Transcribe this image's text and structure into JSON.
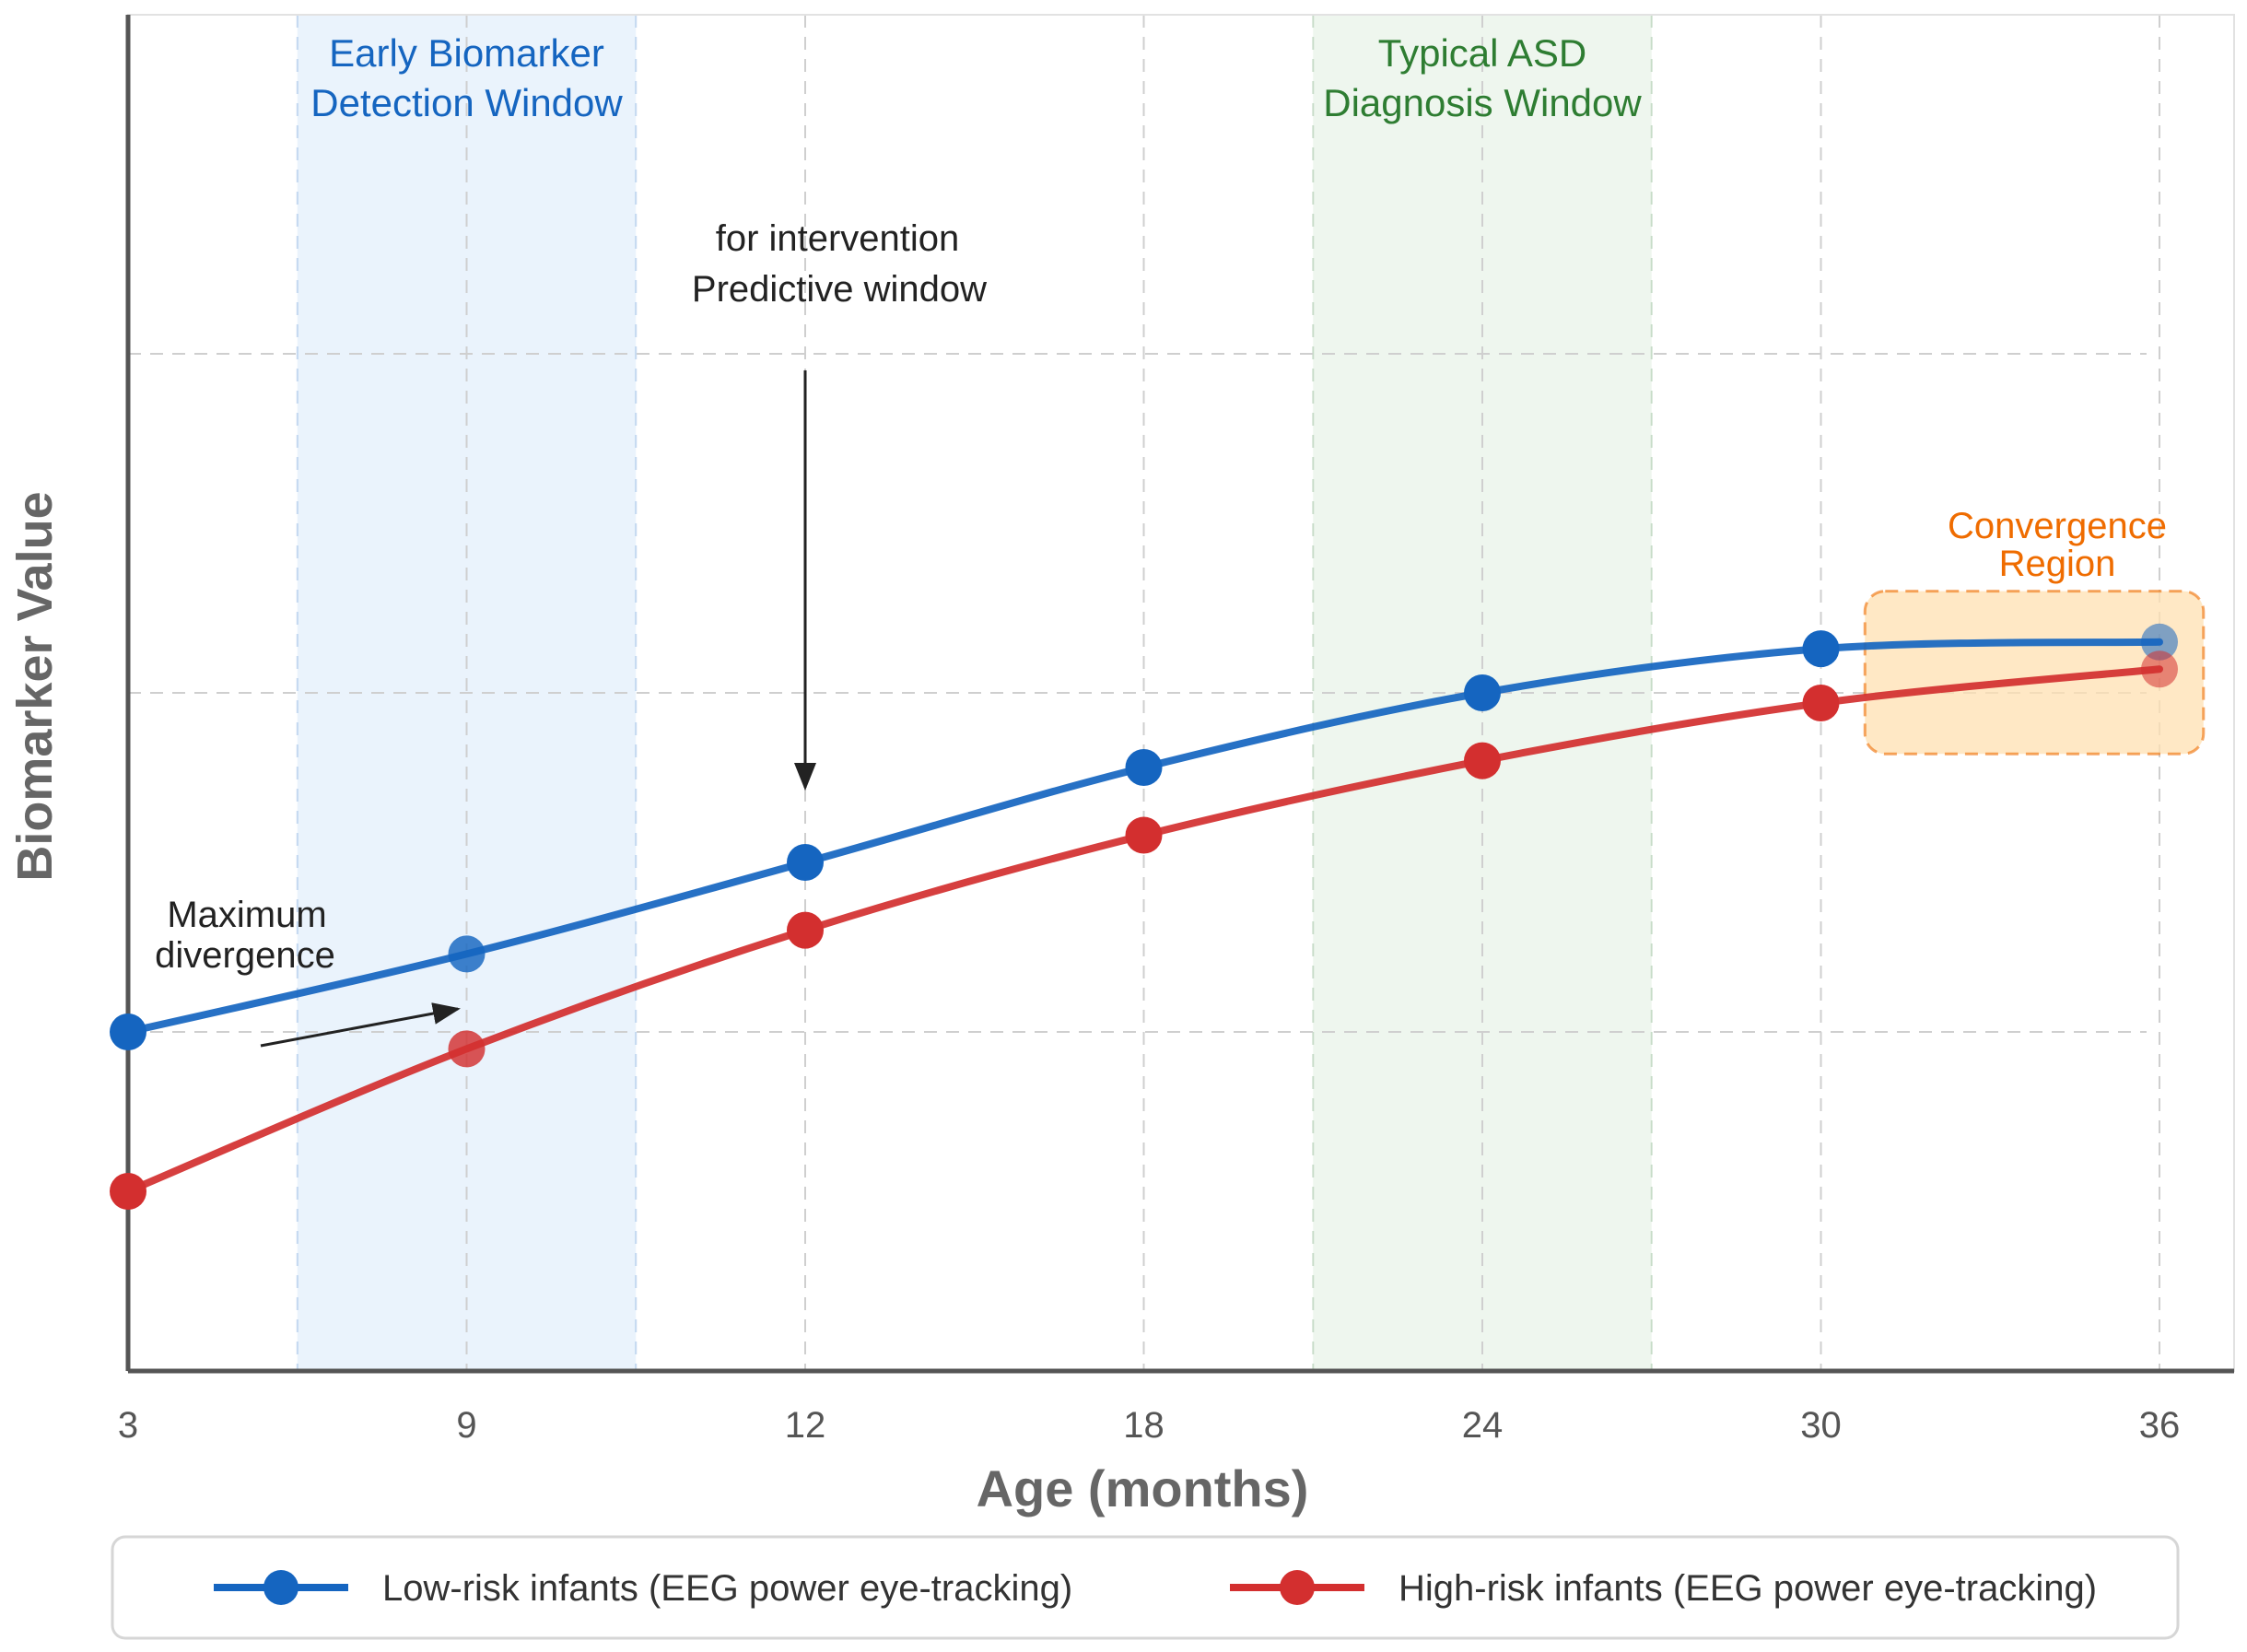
{
  "chart_data": {
    "type": "line",
    "title": "",
    "xlabel": "Age (months)",
    "ylabel": "Biomarker Value",
    "x_ticks": [
      "3",
      "9",
      "12",
      "18",
      "24",
      "30",
      "36"
    ],
    "ylim": [
      0,
      4
    ],
    "grid": true,
    "series": [
      {
        "name": "Low-risk infants (EEG power eye-tracking)",
        "color": "#1565c0",
        "values": [
          1.0,
          1.23,
          1.5,
          1.78,
          2.0,
          2.13,
          2.15
        ]
      },
      {
        "name": "High-risk infants (EEG power eye-tracking)",
        "color": "#d32f2f",
        "values": [
          0.53,
          0.95,
          1.3,
          1.58,
          1.8,
          1.97,
          2.07
        ]
      }
    ],
    "bands": [
      {
        "name": "early-window",
        "label_line1": "Early Biomarker",
        "label_line2": "Detection Window",
        "from_tick": 0.5,
        "to_tick": 1.5,
        "color": "#1565c0",
        "fill": "#eaf3fc"
      },
      {
        "name": "diagnosis-window",
        "label_line1": "Typical ASD",
        "label_line2": "Diagnosis Window",
        "from_tick": 3.5,
        "to_tick": 4.5,
        "color": "#2e7d32",
        "fill": "#eef6ee"
      }
    ],
    "annotations": {
      "predictive": {
        "line1": "for intervention",
        "line2": "Predictive window",
        "at_tick": 2,
        "arrow_from_y": 3.0,
        "arrow_to_y": 1.72
      },
      "divergence": {
        "line1": "Maximum",
        "line2": "divergence"
      },
      "convergence": {
        "line1": "Convergence",
        "line2": "Region",
        "color": "#ef6c00",
        "from_tick": 5.13,
        "to_tick": 6.13,
        "y_from": 1.82,
        "y_to": 2.3
      }
    },
    "legend": {
      "placement": "bottom"
    }
  }
}
